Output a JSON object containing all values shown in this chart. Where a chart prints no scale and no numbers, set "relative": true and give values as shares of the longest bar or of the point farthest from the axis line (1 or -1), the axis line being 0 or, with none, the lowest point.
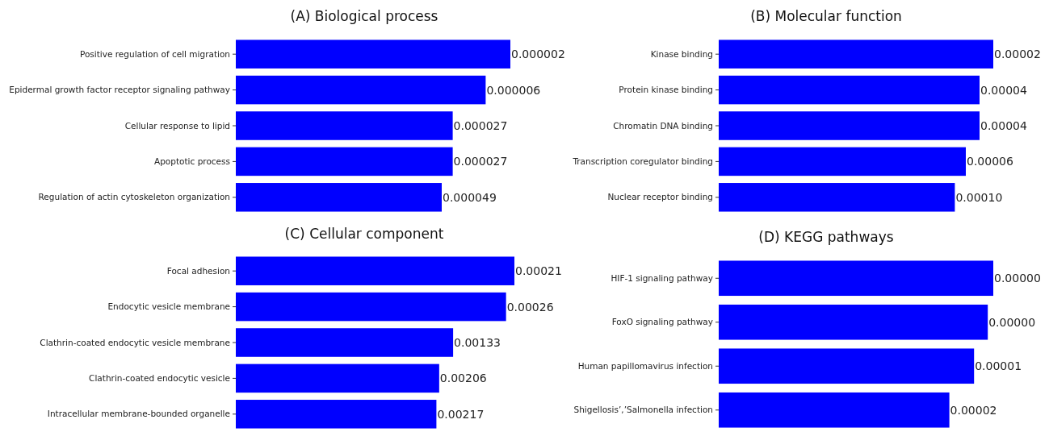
{
  "chart_data": [
    {
      "type": "bar",
      "orientation": "horizontal",
      "relative": true,
      "title": "(A) Biological process",
      "categories": [
        "Positive regulation of cell migration",
        "Epidermal growth factor receptor signaling pathway",
        "Cellular response to lipid",
        "Apoptotic process",
        "Regulation of actin cytoskeleton organization"
      ],
      "values": [
        1,
        0.91,
        0.79,
        0.79,
        0.75
      ],
      "color": "#0000ff",
      "annotations": [
        {
          "text": "0.000002",
          "x": 1,
          "y": "Positive regulation of cell migration"
        },
        {
          "text": "0.000006",
          "x": 0.91,
          "y": "Epidermal growth factor receptor signaling pathway"
        },
        {
          "text": "0.000027",
          "x": 0.79,
          "y": "Cellular response to lipid"
        },
        {
          "text": "0.000027",
          "x": 0.79,
          "y": "Apoptotic process"
        },
        {
          "text": "0.000049",
          "x": 0.75,
          "y": "Regulation of actin cytoskeleton organization"
        }
      ]
    },
    {
      "type": "bar",
      "orientation": "horizontal",
      "relative": true,
      "title": "(B) Molecular function",
      "categories": [
        "Kinase binding",
        "Protein kinase binding",
        "Chromatin DNA binding",
        "Transcription coregulator binding",
        "Nuclear receptor binding"
      ],
      "values": [
        1,
        0.95,
        0.95,
        0.9,
        0.86
      ],
      "color": "#0000ff",
      "annotations": [
        {
          "text": "0.00002",
          "x": 1,
          "y": "Kinase binding"
        },
        {
          "text": "0.00004",
          "x": 0.95,
          "y": "Protein kinase binding"
        },
        {
          "text": "0.00004",
          "x": 0.95,
          "y": "Chromatin DNA binding"
        },
        {
          "text": "0.00006",
          "x": 0.9,
          "y": "Transcription coregulator binding"
        },
        {
          "text": "0.00010",
          "x": 0.86,
          "y": "Nuclear receptor binding"
        }
      ]
    },
    {
      "type": "bar",
      "orientation": "horizontal",
      "relative": true,
      "title": "(C) Cellular component",
      "categories": [
        "Focal adhesion",
        "Endocytic vesicle membrane",
        "Clathrin-coated endocytic vesicle membrane",
        "Clathrin-coated endocytic vesicle",
        "Intracellular membrane-bounded organelle"
      ],
      "values": [
        1,
        0.97,
        0.78,
        0.73,
        0.72
      ],
      "color": "#0000ff",
      "annotations": [
        {
          "text": "0.00021",
          "x": 1,
          "y": "Focal adhesion"
        },
        {
          "text": "0.00026",
          "x": 0.97,
          "y": "Endocytic vesicle membrane"
        },
        {
          "text": "0.00133",
          "x": 0.78,
          "y": "Clathrin-coated endocytic vesicle membrane"
        },
        {
          "text": "0.00206",
          "x": 0.73,
          "y": "Clathrin-coated endocytic vesicle"
        },
        {
          "text": "0.00217",
          "x": 0.72,
          "y": "Intracellular membrane-bounded organelle"
        }
      ]
    },
    {
      "type": "bar",
      "orientation": "horizontal",
      "relative": true,
      "title": "(D) KEGG pathways",
      "categories": [
        "HIF-1 signaling pathway",
        "FoxO signaling pathway",
        "Human papillomavirus infection",
        "Shigellosis’,’Salmonella infection"
      ],
      "values": [
        1,
        0.98,
        0.93,
        0.84
      ],
      "color": "#0000ff",
      "annotations": [
        {
          "text": "0.00000",
          "x": 1,
          "y": "HIF-1 signaling pathway"
        },
        {
          "text": "0.00000",
          "x": 0.98,
          "y": "FoxO signaling pathway"
        },
        {
          "text": "0.00001",
          "x": 0.93,
          "y": "Human papillomavirus infection"
        },
        {
          "text": "0.00002",
          "x": 0.84,
          "y": "Shigellosis’,’Salmonella infection"
        }
      ]
    }
  ]
}
